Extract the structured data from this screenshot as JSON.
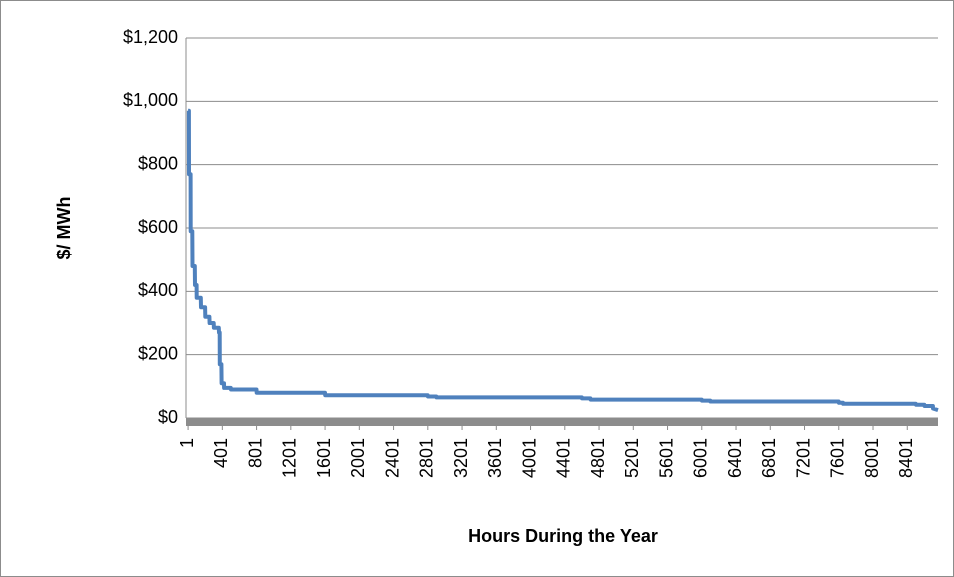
{
  "chart_data": {
    "type": "line",
    "x_label": "Hours During the Year",
    "y_label": "$/ MWh",
    "x": [
      1,
      10,
      12,
      30,
      32,
      50,
      52,
      80,
      82,
      100,
      102,
      150,
      152,
      200,
      202,
      250,
      252,
      300,
      302,
      360,
      362,
      370,
      372,
      390,
      392,
      420,
      422,
      500,
      502,
      800,
      802,
      1600,
      1602,
      2800,
      2802,
      2900,
      2902,
      4600,
      4602,
      4700,
      4702,
      6000,
      6002,
      6100,
      6102,
      7600,
      7602,
      7650,
      7652,
      8500,
      8502,
      8600,
      8602,
      8700,
      8702,
      8760
    ],
    "values": [
      970,
      970,
      770,
      770,
      590,
      590,
      480,
      480,
      420,
      420,
      380,
      380,
      350,
      350,
      320,
      320,
      300,
      300,
      285,
      285,
      270,
      270,
      170,
      170,
      110,
      110,
      95,
      95,
      90,
      90,
      80,
      80,
      72,
      72,
      68,
      68,
      65,
      65,
      62,
      62,
      58,
      58,
      55,
      55,
      52,
      52,
      48,
      48,
      45,
      45,
      42,
      42,
      38,
      38,
      30,
      25
    ],
    "color": "#4f81bd",
    "xlim": [
      0,
      8760
    ],
    "xticks": [
      1,
      401,
      801,
      1201,
      1601,
      2001,
      2401,
      2801,
      3201,
      3601,
      4001,
      4401,
      4801,
      5201,
      5601,
      6001,
      6401,
      6801,
      7201,
      7601,
      8001,
      8401
    ],
    "ylim": [
      0,
      1200
    ],
    "yticks": [
      {
        "value": 0,
        "label": "$0"
      },
      {
        "value": 200,
        "label": "$200"
      },
      {
        "value": 400,
        "label": "$400"
      },
      {
        "value": 600,
        "label": "$600"
      },
      {
        "value": 800,
        "label": "$800"
      },
      {
        "value": 1000,
        "label": "$1,000"
      },
      {
        "value": 1200,
        "label": "$1,200"
      }
    ],
    "grid": true
  }
}
